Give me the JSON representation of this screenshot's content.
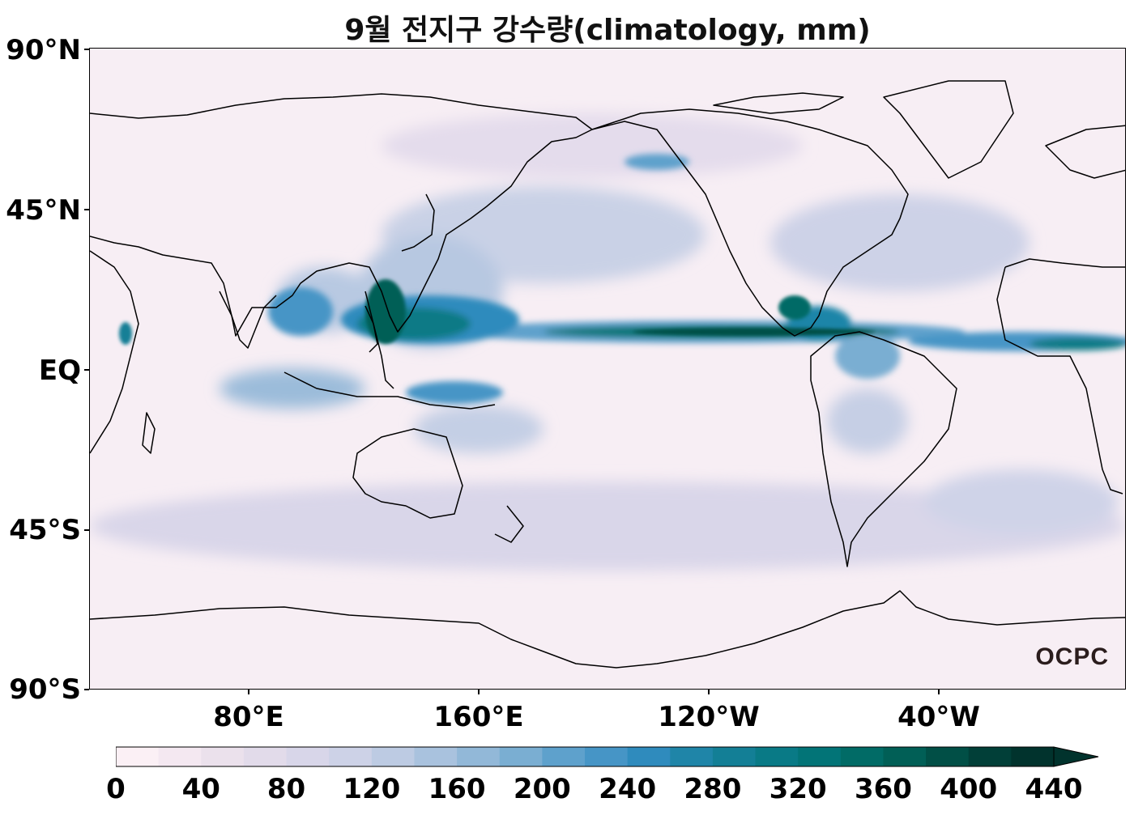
{
  "title": "9월 전지구 강수량(climatology, mm)",
  "lat_labels": [
    "90°N",
    "45°N",
    "EQ",
    "45°S",
    "90°S"
  ],
  "lon_labels": [
    "80°E",
    "160°E",
    "120°W",
    "40°W"
  ],
  "colorbar": {
    "ticks": [
      "0",
      "40",
      "80",
      "120",
      "160",
      "200",
      "240",
      "280",
      "320",
      "360",
      "400",
      "440"
    ],
    "colors": [
      "#fbf0f5",
      "#f4e8f1",
      "#ebe1ec",
      "#e2dbea",
      "#d8d6e9",
      "#cdd2e7",
      "#bdcbe3",
      "#a9c2de",
      "#92b8d8",
      "#7aaed2",
      "#5ea1cc",
      "#4695c6",
      "#2f8bbd",
      "#1f85a8",
      "#137f96",
      "#097a86",
      "#027477",
      "#016b66",
      "#015f56",
      "#014f46",
      "#013f38",
      "#01332d"
    ],
    "extend": "max"
  },
  "logo": "OCPC"
}
